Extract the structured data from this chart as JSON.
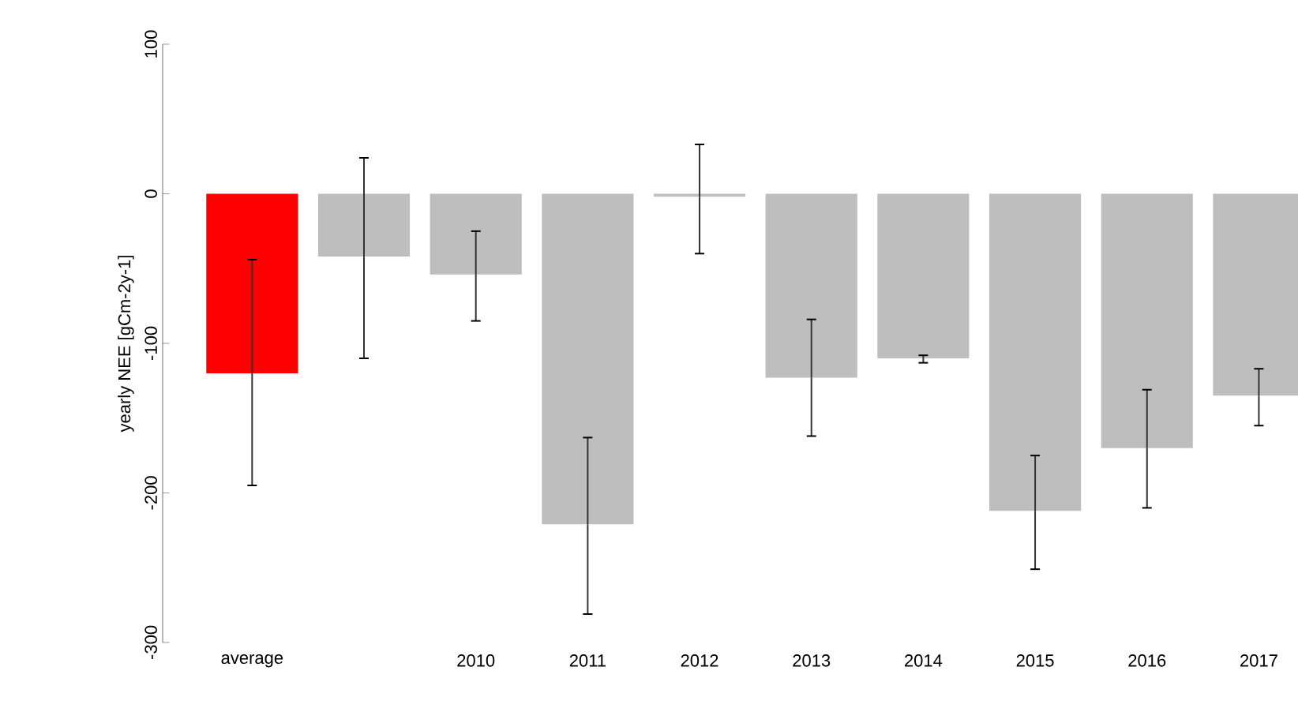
{
  "chart_data": {
    "type": "bar",
    "ylabel": "yearly NEE [gCm-2y-1]",
    "categories": [
      "average",
      null,
      "2010",
      "2011",
      "2012",
      "2013",
      "2014",
      "2015",
      "2016",
      "2017"
    ],
    "values": [
      -120,
      -42,
      -54,
      -221,
      -2,
      -123,
      -110,
      -212,
      -170,
      -135
    ],
    "colors": [
      "#ff0000",
      "#bebebe",
      "#bebebe",
      "#bebebe",
      "#bebebe",
      "#bebebe",
      "#bebebe",
      "#bebebe",
      "#bebebe",
      "#bebebe"
    ],
    "errors": [
      [
        -195,
        -44
      ],
      [
        -110,
        24
      ],
      [
        -85,
        -25
      ],
      [
        -281,
        -163
      ],
      [
        -40,
        33
      ],
      [
        -162,
        -84
      ],
      [
        -113,
        -108
      ],
      [
        -251,
        -175
      ],
      [
        -210,
        -131
      ],
      [
        -155,
        -117
      ]
    ],
    "ylim": [
      -300,
      100
    ],
    "yticks": [
      -300,
      -200,
      -100,
      0,
      100
    ],
    "grid": false
  }
}
